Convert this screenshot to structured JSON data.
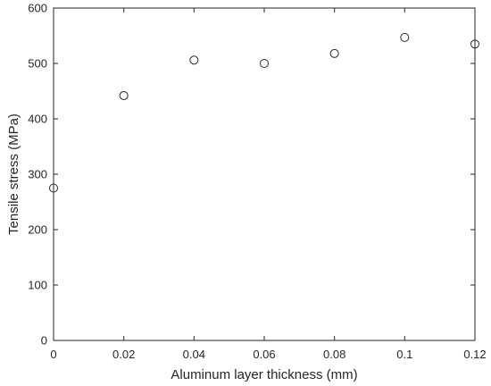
{
  "chart_data": {
    "type": "scatter",
    "title": "",
    "xlabel": "Aluminum layer thickness (mm)",
    "ylabel": "Tensile stress (MPa)",
    "xlim": [
      0,
      0.12
    ],
    "ylim": [
      0,
      600
    ],
    "xticks": [
      0,
      0.02,
      0.04,
      0.06,
      0.08,
      0.1,
      0.12
    ],
    "xtick_labels": [
      "0",
      "0.02",
      "0.04",
      "0.06",
      "0.08",
      "0.1",
      "0.12"
    ],
    "yticks": [
      0,
      100,
      200,
      300,
      400,
      500,
      600
    ],
    "ytick_labels": [
      "0",
      "100",
      "200",
      "300",
      "400",
      "500",
      "600"
    ],
    "grid": false,
    "marker": "open-circle",
    "marker_color": "#262626",
    "series": [
      {
        "x": [
          0,
          0.02,
          0.04,
          0.06,
          0.08,
          0.1,
          0.12
        ],
        "y": [
          275,
          442,
          506,
          500,
          518,
          547,
          535
        ]
      }
    ]
  }
}
